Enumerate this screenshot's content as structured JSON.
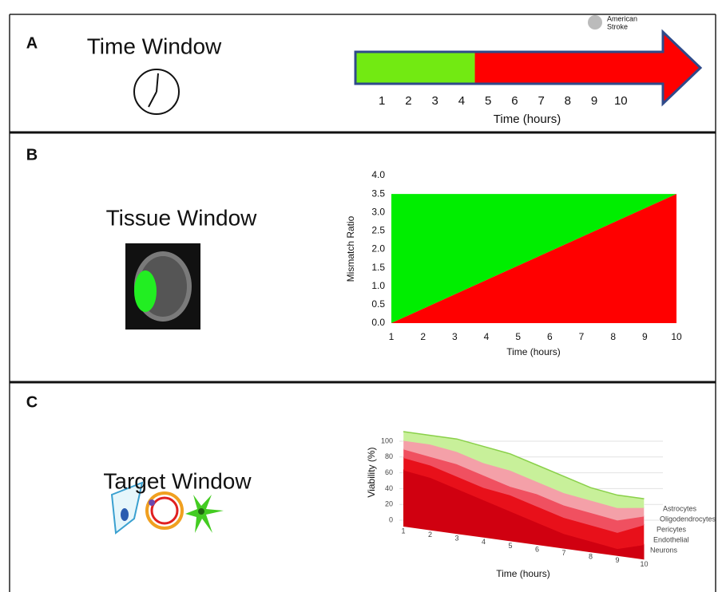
{
  "logo": {
    "line1": "American",
    "line2": "Stroke"
  },
  "chart_data": [
    {
      "type": "timeline",
      "panel_label": "A",
      "title": "Time Window",
      "xlabel": "Time (hours)",
      "xlim": [
        0,
        13
      ],
      "xticks": [
        1,
        2,
        3,
        4,
        5,
        6,
        7,
        8,
        9,
        10
      ],
      "windows": [
        {
          "color": "#72ea12",
          "start": 0,
          "end": 4.5
        },
        {
          "color": "#ff0000",
          "start": 4.5,
          "end": 13
        }
      ],
      "outline": "#2f4a8a"
    },
    {
      "type": "area",
      "panel_label": "B",
      "title": "Tissue Window",
      "xlabel": "Time (hours)",
      "ylabel": "Mismatch Ratio",
      "x": [
        1,
        10
      ],
      "series": [
        {
          "color": "#ff0000",
          "values": [
            0,
            3.5
          ]
        },
        {
          "color": "#00ee00",
          "values": [
            3.5,
            3.5
          ]
        }
      ],
      "xlim": [
        1,
        10
      ],
      "xticks": [
        1,
        2,
        3,
        4,
        5,
        6,
        7,
        8,
        9,
        10
      ],
      "ylim": [
        0,
        4
      ],
      "yticks": [
        {
          "value": 0,
          "label": "0.0"
        },
        {
          "value": 0.5,
          "label": "0.5"
        },
        {
          "value": 1,
          "label": "1.0"
        },
        {
          "value": 1.5,
          "label": "1.5"
        },
        {
          "value": 2,
          "label": "2.0"
        },
        {
          "value": 2.5,
          "label": "2.5"
        },
        {
          "value": 3,
          "label": "3.0"
        },
        {
          "value": 3.5,
          "label": "3.5"
        },
        {
          "value": 4,
          "label": "4.0"
        }
      ]
    },
    {
      "type": "surface3d",
      "panel_label": "C",
      "title": "Target Window",
      "xlabel": "Time (hours)",
      "ylabel": "Viability (%)",
      "x": [
        1,
        2,
        3,
        4,
        5,
        6,
        7,
        8,
        9,
        10
      ],
      "ylim": [
        0,
        100
      ],
      "yticks": [
        0,
        20,
        40,
        60,
        80,
        100
      ],
      "series": [
        {
          "name": "Astrocytes",
          "color": "#8ad04a",
          "values": [
            100,
            100,
            100,
            95,
            90,
            80,
            70,
            60,
            55,
            55
          ]
        },
        {
          "name": "Oligodendrocytes",
          "color": "#c8f09a",
          "values": [
            95,
            95,
            90,
            80,
            75,
            65,
            55,
            50,
            45,
            50
          ]
        },
        {
          "name": "Pericytes",
          "color": "#f4a0a8",
          "values": [
            90,
            85,
            80,
            70,
            60,
            55,
            45,
            40,
            35,
            45
          ]
        },
        {
          "name": "Endothelial",
          "color": "#f05060",
          "values": [
            85,
            80,
            70,
            60,
            55,
            45,
            35,
            30,
            25,
            40
          ]
        },
        {
          "name": "Neurons",
          "color": "#e8101a",
          "values": [
            75,
            70,
            60,
            50,
            40,
            30,
            20,
            15,
            10,
            20
          ]
        }
      ]
    }
  ]
}
